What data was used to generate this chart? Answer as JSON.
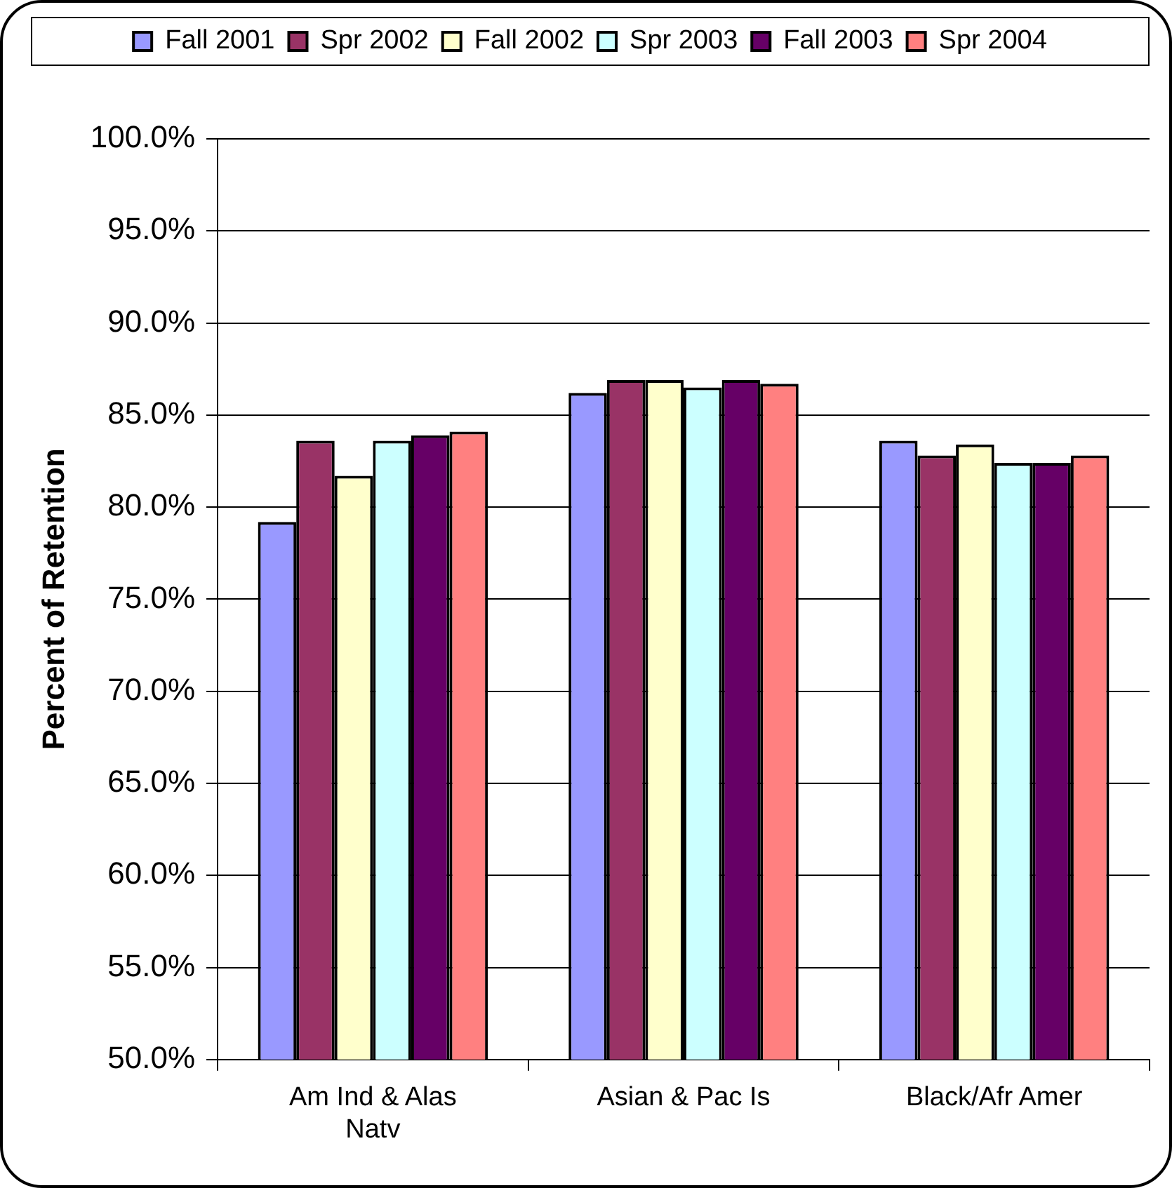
{
  "chart_data": {
    "type": "bar",
    "ylabel": "Percent of Retention",
    "categories": [
      "Am Ind & Alas Natv",
      "Asian & Pac Is",
      "Black/Afr Amer"
    ],
    "series": [
      {
        "name": "Fall 2001",
        "color": "#9999ff",
        "values": [
          79.2,
          86.2,
          83.6
        ]
      },
      {
        "name": "Spr 2002",
        "color": "#993366",
        "values": [
          83.6,
          86.9,
          82.8
        ]
      },
      {
        "name": "Fall 2002",
        "color": "#ffffcc",
        "values": [
          81.7,
          86.9,
          83.4
        ]
      },
      {
        "name": "Spr 2003",
        "color": "#ccffff",
        "values": [
          83.6,
          86.5,
          82.4
        ]
      },
      {
        "name": "Fall 2003",
        "color": "#660066",
        "values": [
          83.9,
          86.9,
          82.4
        ]
      },
      {
        "name": "Spr 2004",
        "color": "#ff8080",
        "values": [
          84.1,
          86.7,
          82.8
        ]
      }
    ],
    "ylim": [
      50,
      100
    ],
    "yticks": [
      {
        "value": 50,
        "label": "50.0%"
      },
      {
        "value": 55,
        "label": "55.0%"
      },
      {
        "value": 60,
        "label": "60.0%"
      },
      {
        "value": 65,
        "label": "65.0%"
      },
      {
        "value": 70,
        "label": "70.0%"
      },
      {
        "value": 75,
        "label": "75.0%"
      },
      {
        "value": 80,
        "label": "80.0%"
      },
      {
        "value": 85,
        "label": "85.0%"
      },
      {
        "value": 90,
        "label": "90.0%"
      },
      {
        "value": 95,
        "label": "95.0%"
      },
      {
        "value": 100,
        "label": "100.0%"
      }
    ],
    "grid": "y",
    "legend": "top"
  }
}
